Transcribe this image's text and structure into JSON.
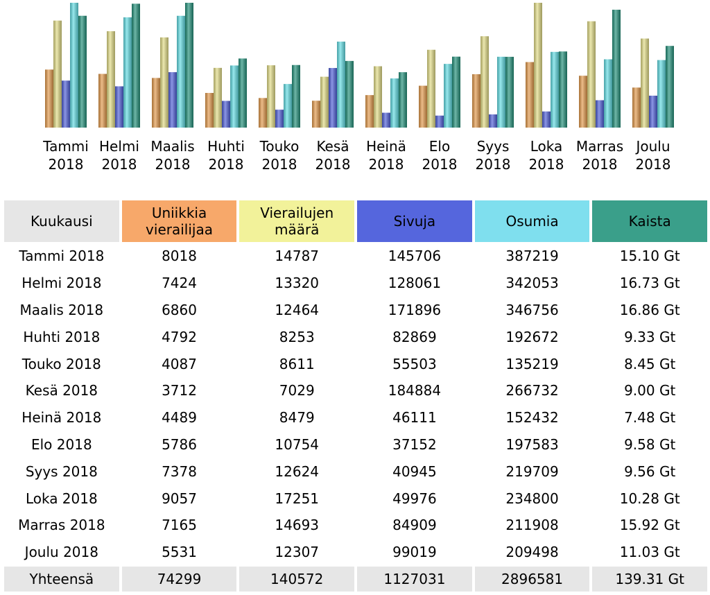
{
  "chart_data": {
    "type": "bar",
    "categories": [
      "Tammi 2018",
      "Helmi 2018",
      "Maalis 2018",
      "Huhti 2018",
      "Touko 2018",
      "Kesä 2018",
      "Heinä 2018",
      "Elo 2018",
      "Syys 2018",
      "Loka 2018",
      "Marras 2018",
      "Joulu 2018"
    ],
    "series": [
      {
        "name": "Uniikkia vierailijaa",
        "color": "#e39a4c",
        "header_color": "#f7a86a",
        "values": [
          8018,
          7424,
          6860,
          4792,
          4087,
          3712,
          4489,
          5786,
          7378,
          9057,
          7165,
          5531
        ],
        "total": 74299
      },
      {
        "name": "Vierailujen määrä",
        "color": "#e2dc86",
        "header_color": "#f2f29a",
        "values": [
          14787,
          13320,
          12464,
          8253,
          8611,
          7029,
          8479,
          10754,
          12624,
          17251,
          14693,
          12307
        ],
        "total": 140572
      },
      {
        "name": "Sivuja",
        "color": "#4f5fd8",
        "header_color": "#5566dd",
        "values": [
          145706,
          128061,
          171896,
          82869,
          55503,
          184884,
          46111,
          37152,
          40945,
          49976,
          84909,
          99019
        ],
        "total": 1127031
      },
      {
        "name": "Osumia",
        "color": "#62dde4",
        "header_color": "#7fdfee",
        "values": [
          387219,
          342053,
          346756,
          192672,
          135219,
          266732,
          152432,
          197583,
          219709,
          234800,
          211908,
          209498
        ],
        "total": 2896581
      },
      {
        "name": "Kaista",
        "color": "#23907a",
        "header_color": "#3a9f8a",
        "values": [
          15.1,
          16.73,
          16.86,
          9.33,
          8.45,
          9.0,
          7.48,
          9.58,
          9.56,
          10.28,
          15.92,
          11.03
        ],
        "value_labels": [
          "15.10 Gt",
          "16.73 Gt",
          "16.86 Gt",
          "9.33 Gt",
          "8.45 Gt",
          "9.00 Gt",
          "7.48 Gt",
          "9.58 Gt",
          "9.56 Gt",
          "10.28 Gt",
          "15.92 Gt",
          "11.03 Gt"
        ],
        "total": 139.31,
        "total_label": "139.31 Gt"
      }
    ],
    "first_header": "Kuukausi",
    "total_row": "Yhteensä"
  }
}
